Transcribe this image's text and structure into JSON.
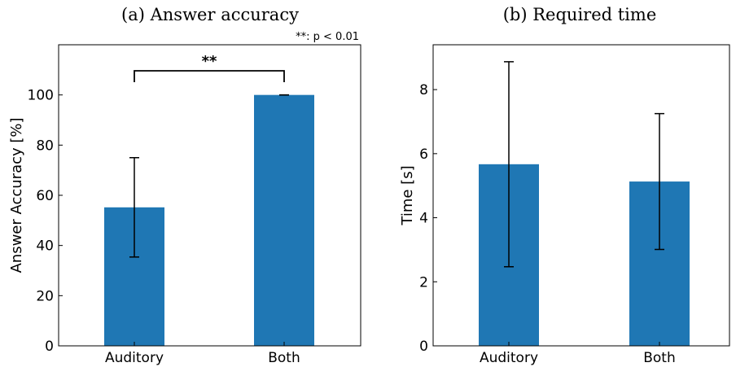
{
  "chart_data": [
    {
      "type": "bar",
      "title": "(a) Answer accuracy",
      "ylabel": "Answer Accuracy [%]",
      "xlabel": "",
      "categories": [
        "Auditory",
        "Both"
      ],
      "values": [
        55.2,
        100.0
      ],
      "errors": [
        19.8,
        0.0
      ],
      "ylim": [
        0,
        120
      ],
      "yticks": [
        0,
        20,
        40,
        60,
        80,
        100
      ],
      "bar_color": "#1f77b4",
      "grid": false,
      "significance": {
        "label": "**",
        "between": [
          0,
          1
        ]
      },
      "annotation": "**: p < 0.01"
    },
    {
      "type": "bar",
      "title": "(b) Required time",
      "ylabel": "Time [s]",
      "xlabel": "",
      "categories": [
        "Auditory",
        "Both"
      ],
      "values": [
        5.67,
        5.13
      ],
      "errors": [
        3.2,
        2.12
      ],
      "ylim": [
        0,
        9.4
      ],
      "yticks": [
        0,
        2,
        4,
        6,
        8
      ],
      "bar_color": "#1f77b4",
      "grid": false
    }
  ]
}
